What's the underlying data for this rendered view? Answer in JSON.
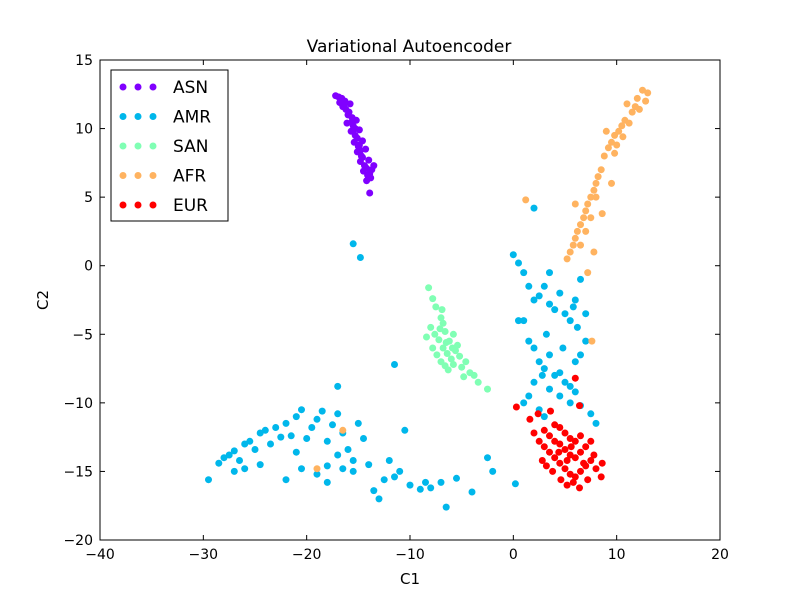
{
  "chart_data": {
    "type": "scatter",
    "title": "Variational Autoencoder",
    "xlabel": "C1",
    "ylabel": "C2",
    "xlim": [
      -40,
      20
    ],
    "ylim": [
      -20,
      15
    ],
    "xticks": [
      -40,
      -30,
      -20,
      -10,
      0,
      10,
      20
    ],
    "yticks": [
      -20,
      -15,
      -10,
      -5,
      0,
      5,
      10,
      15
    ],
    "xtick_labels": [
      "−40",
      "−30",
      "−20",
      "−10",
      "0",
      "10",
      "20"
    ],
    "ytick_labels": [
      "−20",
      "−15",
      "−10",
      "−5",
      "0",
      "5",
      "10",
      "15"
    ],
    "grid": false,
    "legend_position": "top-left",
    "series": [
      {
        "name": "ASN",
        "color": "#8000ff",
        "points": [
          [
            -17.2,
            12.4
          ],
          [
            -16.9,
            12.3
          ],
          [
            -16.6,
            12.2
          ],
          [
            -16.3,
            12.0
          ],
          [
            -16.5,
            11.6
          ],
          [
            -16.2,
            11.4
          ],
          [
            -15.8,
            11.8
          ],
          [
            -16.0,
            11.0
          ],
          [
            -15.6,
            10.8
          ],
          [
            -16.1,
            10.4
          ],
          [
            -15.5,
            10.2
          ],
          [
            -15.2,
            10.6
          ],
          [
            -15.7,
            9.8
          ],
          [
            -15.3,
            9.5
          ],
          [
            -14.9,
            9.9
          ],
          [
            -15.4,
            9.0
          ],
          [
            -15.0,
            8.7
          ],
          [
            -14.6,
            9.1
          ],
          [
            -15.1,
            8.3
          ],
          [
            -14.7,
            8.0
          ],
          [
            -14.3,
            8.5
          ],
          [
            -14.8,
            7.6
          ],
          [
            -14.4,
            7.3
          ],
          [
            -14.0,
            7.7
          ],
          [
            -14.5,
            6.9
          ],
          [
            -14.1,
            6.6
          ],
          [
            -13.7,
            7.0
          ],
          [
            -13.8,
            6.4
          ],
          [
            -14.2,
            6.2
          ],
          [
            -13.9,
            5.3
          ],
          [
            -13.5,
            7.3
          ],
          [
            -16.8,
            11.9
          ],
          [
            -15.9,
            11.2
          ],
          [
            -15.3,
            10.0
          ],
          [
            -14.9,
            8.8
          ],
          [
            -14.6,
            7.9
          ],
          [
            -16.4,
            11.7
          ],
          [
            -15.1,
            9.3
          ],
          [
            -14.2,
            7.1
          ],
          [
            -13.9,
            6.7
          ],
          [
            -14.8,
            8.4
          ],
          [
            -15.6,
            10.5
          ]
        ]
      },
      {
        "name": "AMR",
        "color": "#00b7eb",
        "points": [
          [
            -15.5,
            1.6
          ],
          [
            -14.8,
            0.6
          ],
          [
            -11.5,
            -7.2
          ],
          [
            -10.5,
            -12.0
          ],
          [
            -29.5,
            -15.6
          ],
          [
            -28.5,
            -14.4
          ],
          [
            -28.0,
            -14.0
          ],
          [
            -27.5,
            -13.8
          ],
          [
            -27.0,
            -13.5
          ],
          [
            -26.5,
            -14.2
          ],
          [
            -26.0,
            -13.0
          ],
          [
            -25.5,
            -12.8
          ],
          [
            -25.0,
            -13.4
          ],
          [
            -24.5,
            -12.2
          ],
          [
            -24.0,
            -12.0
          ],
          [
            -23.5,
            -13.0
          ],
          [
            -23.0,
            -11.8
          ],
          [
            -22.5,
            -12.5
          ],
          [
            -22.0,
            -11.5
          ],
          [
            -21.5,
            -12.4
          ],
          [
            -21.0,
            -11.0
          ],
          [
            -20.5,
            -10.5
          ],
          [
            -20.0,
            -12.6
          ],
          [
            -19.5,
            -11.8
          ],
          [
            -19.0,
            -11.2
          ],
          [
            -18.5,
            -10.6
          ],
          [
            -18.0,
            -12.8
          ],
          [
            -17.5,
            -11.6
          ],
          [
            -17.0,
            -10.8
          ],
          [
            -16.5,
            -12.2
          ],
          [
            -16.0,
            -13.4
          ],
          [
            -15.5,
            -14.2
          ],
          [
            -15.0,
            -11.5
          ],
          [
            -14.5,
            -12.6
          ],
          [
            -14.0,
            -14.5
          ],
          [
            -13.5,
            -16.4
          ],
          [
            -13.0,
            -17.0
          ],
          [
            -12.5,
            -15.6
          ],
          [
            -11.5,
            -15.4
          ],
          [
            -11.0,
            -15.0
          ],
          [
            -10.0,
            -16.0
          ],
          [
            -9.0,
            -16.3
          ],
          [
            -8.5,
            -15.8
          ],
          [
            -8.0,
            -16.2
          ],
          [
            -7.0,
            -15.8
          ],
          [
            -6.5,
            -17.6
          ],
          [
            -5.5,
            -15.5
          ],
          [
            -4.0,
            -16.5
          ],
          [
            -2.5,
            -14.0
          ],
          [
            -2.0,
            -15.0
          ],
          [
            -19.0,
            -15.2
          ],
          [
            -20.5,
            -14.8
          ],
          [
            -22.0,
            -15.6
          ],
          [
            -24.5,
            -14.5
          ],
          [
            -26.0,
            -14.8
          ],
          [
            -27.0,
            -15.0
          ],
          [
            -21.0,
            -13.6
          ],
          [
            -18.0,
            -14.6
          ],
          [
            -17.0,
            -13.8
          ],
          [
            -15.5,
            -15.0
          ],
          [
            -16.5,
            -14.8
          ],
          [
            -17.0,
            -8.8
          ],
          [
            -18.0,
            -15.8
          ],
          [
            -12.0,
            -14.2
          ],
          [
            0.0,
            0.8
          ],
          [
            0.5,
            0.2
          ],
          [
            1.0,
            -0.5
          ],
          [
            1.5,
            -1.5
          ],
          [
            2.0,
            -2.5
          ],
          [
            2.5,
            -2.2
          ],
          [
            3.0,
            -1.5
          ],
          [
            3.5,
            -2.8
          ],
          [
            4.0,
            -3.2
          ],
          [
            4.5,
            -2.0
          ],
          [
            5.0,
            -3.5
          ],
          [
            5.5,
            -4.0
          ],
          [
            6.0,
            -2.5
          ],
          [
            6.5,
            -1.0
          ],
          [
            7.0,
            -3.5
          ],
          [
            1.0,
            -4.0
          ],
          [
            1.5,
            -5.5
          ],
          [
            0.5,
            -4.0
          ],
          [
            2.0,
            -6.0
          ],
          [
            2.5,
            -7.0
          ],
          [
            3.0,
            -7.5
          ],
          [
            3.5,
            -6.5
          ],
          [
            4.0,
            -8.0
          ],
          [
            4.5,
            -7.8
          ],
          [
            5.0,
            -8.5
          ],
          [
            5.5,
            -8.8
          ],
          [
            6.0,
            -7.0
          ],
          [
            6.5,
            -6.5
          ],
          [
            7.0,
            -5.5
          ],
          [
            6.0,
            -9.2
          ],
          [
            5.5,
            -10.0
          ],
          [
            4.5,
            -9.5
          ],
          [
            3.5,
            -9.0
          ],
          [
            2.0,
            -8.5
          ],
          [
            1.5,
            -9.5
          ],
          [
            1.0,
            -10.0
          ],
          [
            2.5,
            -10.5
          ],
          [
            3.0,
            -11.0
          ],
          [
            7.5,
            -10.8
          ],
          [
            8.0,
            -11.5
          ],
          [
            6.5,
            -10.2
          ],
          [
            2.0,
            4.2
          ],
          [
            3.5,
            -0.5
          ],
          [
            5.8,
            -3.0
          ],
          [
            6.2,
            -4.5
          ],
          [
            0.2,
            -15.9
          ],
          [
            4.8,
            -6.0
          ],
          [
            3.2,
            -5.0
          ],
          [
            2.8,
            -8.0
          ]
        ]
      },
      {
        "name": "SAN",
        "color": "#80ffb4",
        "points": [
          [
            -8.2,
            -1.6
          ],
          [
            -7.8,
            -2.4
          ],
          [
            -7.5,
            -3.0
          ],
          [
            -7.0,
            -3.8
          ],
          [
            -6.8,
            -4.2
          ],
          [
            -8.0,
            -4.5
          ],
          [
            -7.6,
            -5.0
          ],
          [
            -7.2,
            -5.4
          ],
          [
            -6.6,
            -4.8
          ],
          [
            -6.2,
            -5.5
          ],
          [
            -5.8,
            -5.0
          ],
          [
            -6.8,
            -6.0
          ],
          [
            -6.4,
            -6.4
          ],
          [
            -6.0,
            -6.8
          ],
          [
            -5.6,
            -6.2
          ],
          [
            -5.2,
            -6.6
          ],
          [
            -7.4,
            -6.5
          ],
          [
            -7.0,
            -7.0
          ],
          [
            -6.6,
            -7.3
          ],
          [
            -5.8,
            -7.2
          ],
          [
            -5.0,
            -7.4
          ],
          [
            -4.6,
            -7.0
          ],
          [
            -4.2,
            -7.8
          ],
          [
            -3.8,
            -8.0
          ],
          [
            -3.4,
            -8.5
          ],
          [
            -2.5,
            -9.0
          ],
          [
            -7.8,
            -6.0
          ],
          [
            -8.4,
            -5.2
          ],
          [
            -6.9,
            -3.2
          ],
          [
            -5.4,
            -5.8
          ],
          [
            -6.3,
            -7.6
          ],
          [
            -4.8,
            -8.1
          ],
          [
            -7.1,
            -4.6
          ],
          [
            -5.9,
            -6.0
          ],
          [
            -6.5,
            -5.6
          ]
        ]
      },
      {
        "name": "AFR",
        "color": "#ffb360",
        "points": [
          [
            13.0,
            12.6
          ],
          [
            12.5,
            12.8
          ],
          [
            12.0,
            12.2
          ],
          [
            11.8,
            11.6
          ],
          [
            11.5,
            11.2
          ],
          [
            11.0,
            11.8
          ],
          [
            10.8,
            10.6
          ],
          [
            10.5,
            10.2
          ],
          [
            10.2,
            9.8
          ],
          [
            9.8,
            9.5
          ],
          [
            9.5,
            9.0
          ],
          [
            9.2,
            8.6
          ],
          [
            9.0,
            9.8
          ],
          [
            10.0,
            8.8
          ],
          [
            8.8,
            8.0
          ],
          [
            8.5,
            7.0
          ],
          [
            8.2,
            6.5
          ],
          [
            8.0,
            6.0
          ],
          [
            7.8,
            5.5
          ],
          [
            7.5,
            5.0
          ],
          [
            7.2,
            4.5
          ],
          [
            7.0,
            4.0
          ],
          [
            6.8,
            3.5
          ],
          [
            6.5,
            3.0
          ],
          [
            6.2,
            2.5
          ],
          [
            6.0,
            2.0
          ],
          [
            5.8,
            1.5
          ],
          [
            5.5,
            1.0
          ],
          [
            5.2,
            0.5
          ],
          [
            8.0,
            5.0
          ],
          [
            7.5,
            3.5
          ],
          [
            7.0,
            2.5
          ],
          [
            6.5,
            1.5
          ],
          [
            8.6,
            3.8
          ],
          [
            9.5,
            6.0
          ],
          [
            7.8,
            1.0
          ],
          [
            7.2,
            -0.5
          ],
          [
            6.0,
            4.5
          ],
          [
            7.6,
            -5.5
          ],
          [
            1.2,
            4.8
          ],
          [
            -19.0,
            -14.8
          ],
          [
            -16.5,
            -12.0
          ],
          [
            12.2,
            11.4
          ],
          [
            11.2,
            10.4
          ],
          [
            10.6,
            9.4
          ],
          [
            9.8,
            8.2
          ],
          [
            12.8,
            12.0
          ]
        ]
      },
      {
        "name": "EUR",
        "color": "#ff0000",
        "points": [
          [
            2.0,
            -12.2
          ],
          [
            2.5,
            -12.8
          ],
          [
            3.0,
            -13.2
          ],
          [
            3.5,
            -13.6
          ],
          [
            4.0,
            -14.0
          ],
          [
            4.5,
            -14.4
          ],
          [
            5.0,
            -14.8
          ],
          [
            5.5,
            -15.2
          ],
          [
            6.0,
            -15.4
          ],
          [
            6.5,
            -15.0
          ],
          [
            7.0,
            -14.6
          ],
          [
            7.5,
            -14.2
          ],
          [
            8.0,
            -14.8
          ],
          [
            8.5,
            -15.4
          ],
          [
            3.0,
            -12.0
          ],
          [
            3.5,
            -12.4
          ],
          [
            4.0,
            -12.8
          ],
          [
            4.5,
            -13.0
          ],
          [
            5.0,
            -13.4
          ],
          [
            5.5,
            -13.8
          ],
          [
            6.0,
            -14.0
          ],
          [
            6.5,
            -13.6
          ],
          [
            7.0,
            -13.2
          ],
          [
            7.5,
            -12.8
          ],
          [
            4.0,
            -11.6
          ],
          [
            4.5,
            -11.8
          ],
          [
            5.0,
            -12.2
          ],
          [
            5.5,
            -12.6
          ],
          [
            6.0,
            -12.8
          ],
          [
            6.5,
            -12.4
          ],
          [
            2.8,
            -14.2
          ],
          [
            3.2,
            -14.6
          ],
          [
            3.8,
            -15.0
          ],
          [
            4.6,
            -15.6
          ],
          [
            5.2,
            -16.0
          ],
          [
            5.8,
            -15.8
          ],
          [
            6.4,
            -16.2
          ],
          [
            7.2,
            -15.6
          ],
          [
            7.8,
            -13.8
          ],
          [
            8.6,
            -14.4
          ],
          [
            1.6,
            -11.2
          ],
          [
            2.4,
            -10.8
          ],
          [
            3.6,
            -10.6
          ],
          [
            6.4,
            -10.2
          ],
          [
            6.0,
            -8.2
          ],
          [
            0.3,
            -10.3
          ],
          [
            5.2,
            -14.2
          ],
          [
            4.4,
            -13.6
          ],
          [
            6.8,
            -14.4
          ],
          [
            5.6,
            -13.2
          ]
        ]
      }
    ]
  }
}
